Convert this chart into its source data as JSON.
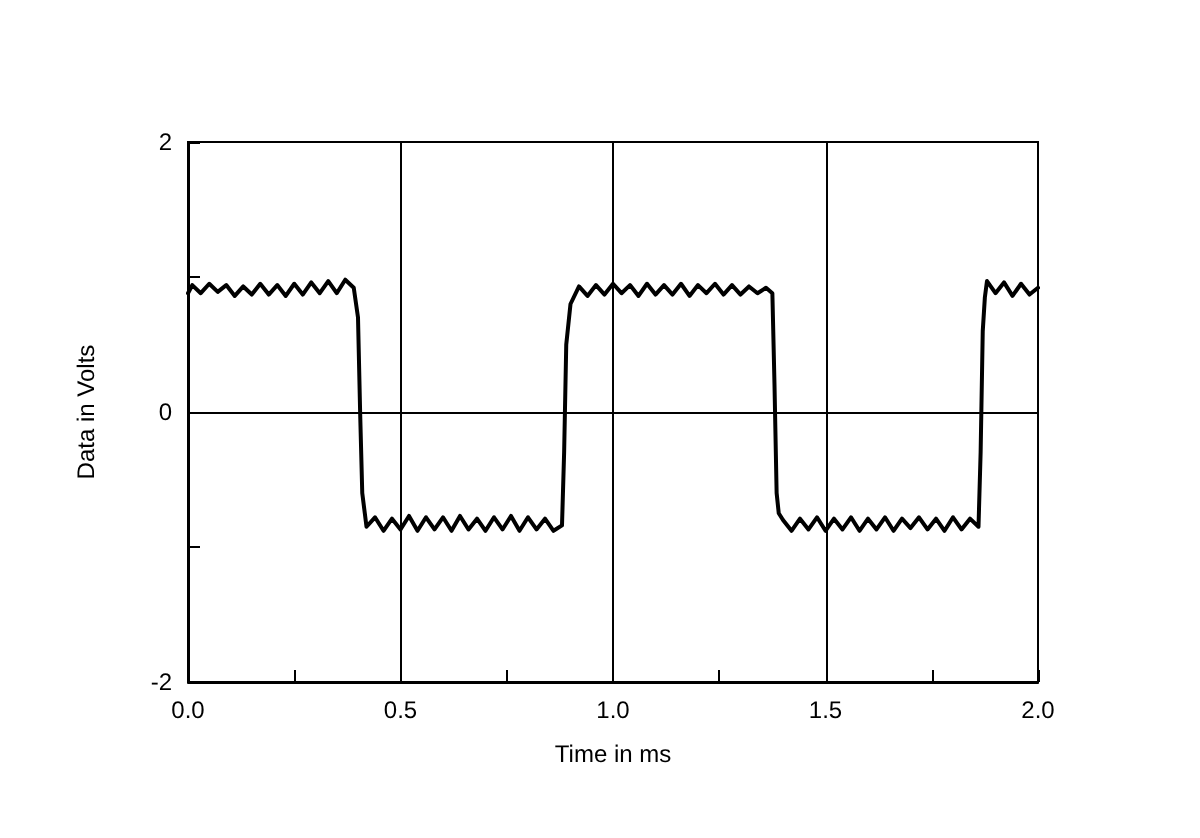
{
  "chart_data": {
    "type": "line",
    "xlabel": "Time in ms",
    "ylabel": "Data in Volts",
    "xlim": [
      0,
      2
    ],
    "ylim": [
      -2,
      2
    ],
    "xticks": [
      {
        "value": 0,
        "label": "0.0"
      },
      {
        "value": 0.25,
        "label": null
      },
      {
        "value": 0.5,
        "label": "0.5"
      },
      {
        "value": 0.75,
        "label": null
      },
      {
        "value": 1,
        "label": "1.0"
      },
      {
        "value": 1.25,
        "label": null
      },
      {
        "value": 1.5,
        "label": "1.5"
      },
      {
        "value": 1.75,
        "label": null
      },
      {
        "value": 2,
        "label": "2.0"
      }
    ],
    "yticks": [
      -2,
      {
        "value": -1,
        "label": null
      },
      0,
      {
        "value": 1,
        "label": null
      },
      2
    ],
    "grid": true,
    "marker": "none",
    "line_style": "solid",
    "series": [
      {
        "color": "#000000",
        "x": [
          0,
          0.01,
          0.03,
          0.05,
          0.07,
          0.09,
          0.11,
          0.13,
          0.15,
          0.17,
          0.19,
          0.21,
          0.23,
          0.25,
          0.27,
          0.29,
          0.31,
          0.33,
          0.35,
          0.37,
          0.39,
          0.4,
          0.405,
          0.41,
          0.42,
          0.44,
          0.46,
          0.48,
          0.5,
          0.52,
          0.54,
          0.56,
          0.58,
          0.6,
          0.62,
          0.64,
          0.66,
          0.68,
          0.7,
          0.72,
          0.74,
          0.76,
          0.78,
          0.8,
          0.82,
          0.84,
          0.86,
          0.88,
          0.885,
          0.89,
          0.9,
          0.92,
          0.94,
          0.96,
          0.98,
          1,
          1.02,
          1.04,
          1.06,
          1.08,
          1.1,
          1.12,
          1.14,
          1.16,
          1.18,
          1.2,
          1.22,
          1.24,
          1.26,
          1.28,
          1.3,
          1.32,
          1.34,
          1.36,
          1.375,
          1.38,
          1.385,
          1.39,
          1.4,
          1.42,
          1.44,
          1.46,
          1.48,
          1.5,
          1.52,
          1.54,
          1.56,
          1.58,
          1.6,
          1.62,
          1.64,
          1.66,
          1.68,
          1.7,
          1.72,
          1.74,
          1.76,
          1.78,
          1.8,
          1.82,
          1.84,
          1.86,
          1.865,
          1.87,
          1.875,
          1.88,
          1.9,
          1.92,
          1.94,
          1.96,
          1.98,
          2
        ],
        "values": [
          0.88,
          0.94,
          0.88,
          0.95,
          0.89,
          0.94,
          0.86,
          0.93,
          0.87,
          0.95,
          0.87,
          0.94,
          0.86,
          0.95,
          0.87,
          0.96,
          0.88,
          0.97,
          0.88,
          0.98,
          0.92,
          0.7,
          0,
          -0.6,
          -0.85,
          -0.78,
          -0.88,
          -0.79,
          -0.87,
          -0.77,
          -0.88,
          -0.78,
          -0.87,
          -0.78,
          -0.88,
          -0.77,
          -0.87,
          -0.79,
          -0.88,
          -0.78,
          -0.87,
          -0.77,
          -0.88,
          -0.78,
          -0.87,
          -0.79,
          -0.88,
          -0.84,
          -0.3,
          0.5,
          0.8,
          0.93,
          0.86,
          0.94,
          0.87,
          0.95,
          0.88,
          0.94,
          0.86,
          0.95,
          0.87,
          0.94,
          0.87,
          0.95,
          0.86,
          0.94,
          0.88,
          0.95,
          0.87,
          0.94,
          0.87,
          0.93,
          0.88,
          0.92,
          0.88,
          0.2,
          -0.6,
          -0.75,
          -0.8,
          -0.88,
          -0.79,
          -0.87,
          -0.78,
          -0.88,
          -0.79,
          -0.87,
          -0.78,
          -0.88,
          -0.79,
          -0.87,
          -0.78,
          -0.88,
          -0.79,
          -0.86,
          -0.78,
          -0.87,
          -0.79,
          -0.88,
          -0.78,
          -0.87,
          -0.79,
          -0.85,
          -0.3,
          0.6,
          0.85,
          0.97,
          0.88,
          0.96,
          0.86,
          0.95,
          0.87,
          0.92
        ]
      }
    ]
  }
}
